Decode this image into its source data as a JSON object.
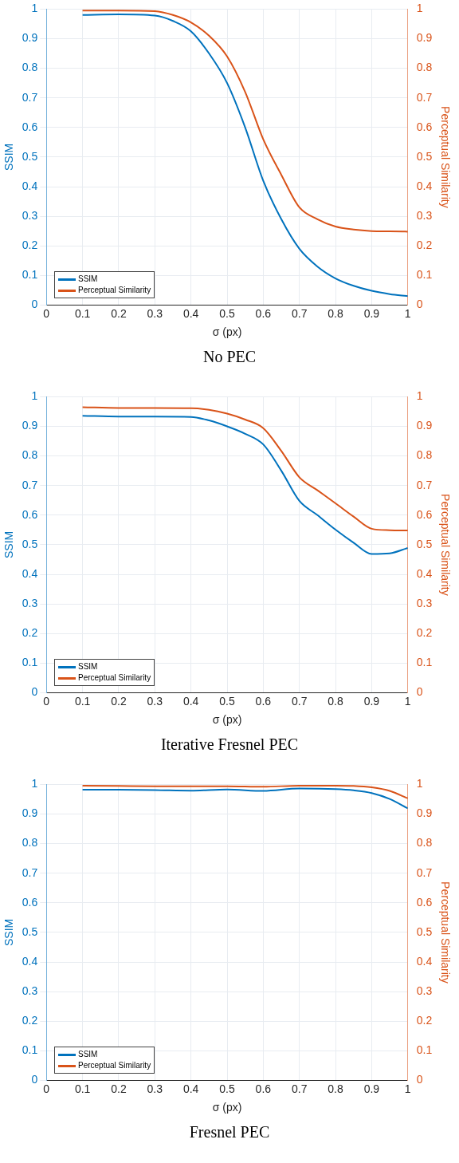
{
  "chart_data": [
    {
      "type": "line",
      "title": "No PEC",
      "xlabel": "σ (px)",
      "ylabel": "SSIM",
      "y2label": "Perceptual Similarity",
      "xlim": [
        0,
        1
      ],
      "xticks": [
        0,
        0.1,
        0.2,
        0.3,
        0.4,
        0.5,
        0.6,
        0.7,
        0.8,
        0.9,
        1
      ],
      "ylim": [
        0,
        1
      ],
      "yticks": [
        0,
        0.1,
        0.2,
        0.3,
        0.4,
        0.5,
        0.6,
        0.7,
        0.8,
        0.9,
        1
      ],
      "y2lim": [
        0,
        1
      ],
      "y2ticks": [
        0,
        0.1,
        0.2,
        0.3,
        0.4,
        0.5,
        0.6,
        0.7,
        0.8,
        0.9,
        1
      ],
      "grid": true,
      "legend": "bottom left",
      "marker": "none",
      "line_style": "solid",
      "series": [
        {
          "name": "SSIM",
          "color": "#0072bd",
          "x": [
            0.1,
            0.2,
            0.3,
            0.35,
            0.4,
            0.45,
            0.5,
            0.55,
            0.6,
            0.65,
            0.7,
            0.75,
            0.8,
            0.85,
            0.9,
            0.95,
            1
          ],
          "values": [
            0.98,
            0.982,
            0.978,
            0.96,
            0.925,
            0.85,
            0.75,
            0.6,
            0.42,
            0.29,
            0.19,
            0.13,
            0.09,
            0.065,
            0.048,
            0.037,
            0.03
          ]
        },
        {
          "name": "Perceptual Similarity",
          "color": "#d95319",
          "axis": "y2",
          "x": [
            0.1,
            0.2,
            0.3,
            0.35,
            0.4,
            0.45,
            0.5,
            0.55,
            0.6,
            0.65,
            0.7,
            0.75,
            0.8,
            0.85,
            0.9,
            0.95,
            1
          ],
          "values": [
            0.995,
            0.995,
            0.993,
            0.98,
            0.955,
            0.91,
            0.84,
            0.72,
            0.56,
            0.44,
            0.33,
            0.29,
            0.265,
            0.255,
            0.25,
            0.249,
            0.248
          ]
        }
      ]
    },
    {
      "type": "line",
      "title": "Iterative Fresnel PEC",
      "xlabel": "σ (px)",
      "ylabel": "SSIM",
      "y2label": "Perceptual Similarity",
      "xlim": [
        0,
        1
      ],
      "xticks": [
        0,
        0.1,
        0.2,
        0.3,
        0.4,
        0.5,
        0.6,
        0.7,
        0.8,
        0.9,
        1
      ],
      "ylim": [
        0,
        1
      ],
      "yticks": [
        0,
        0.1,
        0.2,
        0.3,
        0.4,
        0.5,
        0.6,
        0.7,
        0.8,
        0.9,
        1
      ],
      "y2lim": [
        0,
        1
      ],
      "y2ticks": [
        0,
        0.1,
        0.2,
        0.3,
        0.4,
        0.5,
        0.6,
        0.7,
        0.8,
        0.9,
        1
      ],
      "grid": true,
      "legend": "bottom left",
      "marker": "none",
      "line_style": "solid",
      "series": [
        {
          "name": "SSIM",
          "color": "#0072bd",
          "x": [
            0.1,
            0.2,
            0.3,
            0.4,
            0.45,
            0.5,
            0.55,
            0.6,
            0.65,
            0.7,
            0.75,
            0.8,
            0.85,
            0.9,
            0.95,
            1
          ],
          "values": [
            0.936,
            0.933,
            0.933,
            0.932,
            0.92,
            0.9,
            0.875,
            0.839,
            0.75,
            0.648,
            0.6,
            0.551,
            0.507,
            0.469,
            0.471,
            0.489
          ]
        },
        {
          "name": "Perceptual Similarity",
          "color": "#d95319",
          "axis": "y2",
          "x": [
            0.1,
            0.2,
            0.3,
            0.4,
            0.45,
            0.5,
            0.55,
            0.6,
            0.65,
            0.7,
            0.75,
            0.8,
            0.85,
            0.9,
            0.95,
            1
          ],
          "values": [
            0.965,
            0.962,
            0.962,
            0.961,
            0.956,
            0.943,
            0.923,
            0.894,
            0.817,
            0.728,
            0.684,
            0.64,
            0.595,
            0.554,
            0.549,
            0.548
          ]
        }
      ]
    },
    {
      "type": "line",
      "title": "Fresnel PEC",
      "xlabel": "σ (px)",
      "ylabel": "SSIM",
      "y2label": "Perceptual Similarity",
      "xlim": [
        0,
        1
      ],
      "xticks": [
        0,
        0.1,
        0.2,
        0.3,
        0.4,
        0.5,
        0.6,
        0.7,
        0.8,
        0.9,
        1
      ],
      "ylim": [
        0,
        1
      ],
      "yticks": [
        0,
        0.1,
        0.2,
        0.3,
        0.4,
        0.5,
        0.6,
        0.7,
        0.8,
        0.9,
        1
      ],
      "y2lim": [
        0,
        1
      ],
      "y2ticks": [
        0,
        0.1,
        0.2,
        0.3,
        0.4,
        0.5,
        0.6,
        0.7,
        0.8,
        0.9,
        1
      ],
      "grid": true,
      "legend": "bottom left",
      "marker": "none",
      "line_style": "solid",
      "series": [
        {
          "name": "SSIM",
          "color": "#0072bd",
          "x": [
            0.1,
            0.2,
            0.3,
            0.4,
            0.5,
            0.6,
            0.7,
            0.8,
            0.85,
            0.9,
            0.95,
            1
          ],
          "values": [
            0.982,
            0.982,
            0.981,
            0.979,
            0.983,
            0.978,
            0.986,
            0.984,
            0.98,
            0.971,
            0.951,
            0.919
          ]
        },
        {
          "name": "Perceptual Similarity",
          "color": "#d95319",
          "axis": "y2",
          "x": [
            0.1,
            0.2,
            0.3,
            0.4,
            0.5,
            0.6,
            0.7,
            0.8,
            0.85,
            0.9,
            0.95,
            1
          ],
          "values": [
            0.996,
            0.995,
            0.994,
            0.994,
            0.994,
            0.992,
            0.996,
            0.996,
            0.995,
            0.99,
            0.978,
            0.953
          ]
        }
      ]
    }
  ]
}
